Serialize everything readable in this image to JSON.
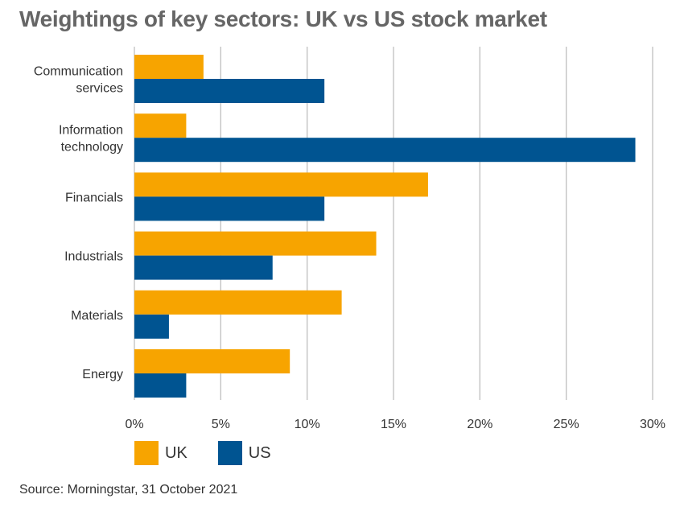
{
  "title": "Weightings of key sectors: UK vs US stock market",
  "source": "Source: Morningstar, 31 October 2021",
  "colors": {
    "uk": "#F7A400",
    "us": "#005491",
    "grid": "#bfbfbf"
  },
  "legend": {
    "uk_label": "UK",
    "us_label": "US"
  },
  "chart_data": {
    "type": "bar",
    "orientation": "horizontal",
    "title": "Weightings of key sectors: UK vs US stock market",
    "categories": [
      [
        "Communication",
        "services"
      ],
      [
        "Information",
        "technology"
      ],
      [
        "Financials"
      ],
      [
        "Industrials"
      ],
      [
        "Materials"
      ],
      [
        "Energy"
      ]
    ],
    "series": [
      {
        "name": "UK",
        "values": [
          4,
          3,
          17,
          14,
          12,
          9
        ]
      },
      {
        "name": "US",
        "values": [
          11,
          29,
          11,
          8,
          2,
          3
        ]
      }
    ],
    "xlim": [
      0,
      30
    ],
    "x_ticks": [
      0,
      5,
      10,
      15,
      20,
      25,
      30
    ],
    "x_tick_labels": [
      "0%",
      "5%",
      "10%",
      "15%",
      "20%",
      "25%",
      "30%"
    ],
    "grid": "vertical",
    "legend_position": "bottom-left"
  }
}
